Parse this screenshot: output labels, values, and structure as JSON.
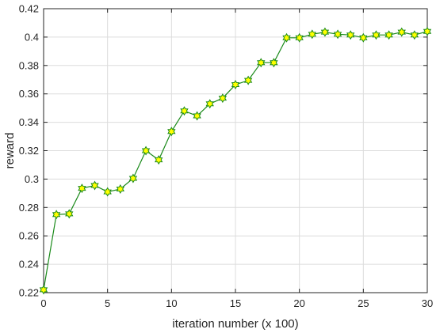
{
  "chart_data": {
    "type": "line",
    "xlabel": "iteration number (x 100)",
    "ylabel": "reward",
    "xlim": [
      0,
      30
    ],
    "ylim": [
      0.22,
      0.42
    ],
    "xticks": [
      "0",
      "5",
      "10",
      "15",
      "20",
      "25",
      "30"
    ],
    "yticks": [
      "0.22",
      "0.24",
      "0.26",
      "0.28",
      "0.3",
      "0.32",
      "0.34",
      "0.36",
      "0.38",
      "0.4",
      "0.42"
    ],
    "grid": true,
    "line_color": "#1a8a1a",
    "marker_fill": "#ffff00",
    "marker": "hexagram",
    "series": [
      {
        "x": [
          0,
          1,
          2,
          3,
          4,
          5,
          6,
          7,
          8,
          9,
          10,
          11,
          12,
          13,
          14,
          15,
          16,
          17,
          18,
          19,
          20,
          21,
          22,
          23,
          24,
          25,
          26,
          27,
          28,
          29,
          30
        ],
        "y": [
          0.222,
          0.275,
          0.2755,
          0.2935,
          0.2955,
          0.291,
          0.293,
          0.3005,
          0.32,
          0.3135,
          0.3335,
          0.348,
          0.3445,
          0.353,
          0.357,
          0.3665,
          0.3695,
          0.382,
          0.382,
          0.3995,
          0.3995,
          0.402,
          0.4035,
          0.402,
          0.4015,
          0.3995,
          0.4015,
          0.4015,
          0.4035,
          0.4015,
          0.404
        ]
      }
    ]
  }
}
